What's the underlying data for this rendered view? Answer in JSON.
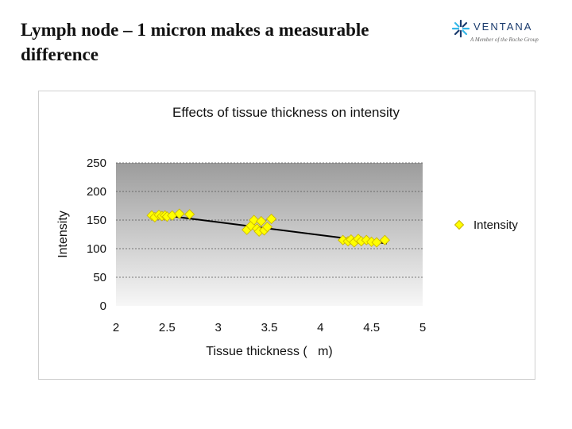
{
  "slide": {
    "title": "Lymph node – 1 micron makes a measurable difference"
  },
  "logo": {
    "name": "VENTANA",
    "tagline": "A Member of the Roche Group"
  },
  "colors": {
    "marker": "#ffff00",
    "marker_stroke": "#c9b400",
    "trendline": "#000000",
    "plot_top": "#9c9c9c",
    "plot_bottom": "#f7f7f7",
    "gridline": "#555555",
    "logo_blue": "#1b3c6e",
    "logo_cyan": "#35b6e8"
  },
  "chart_data": {
    "type": "scatter",
    "title": "Effects of tissue thickness on intensity",
    "xlabel": "Tissue thickness (   m)",
    "ylabel": "Intensity",
    "xlim": [
      2,
      5
    ],
    "ylim": [
      0,
      250
    ],
    "xticks": [
      "2",
      "2.5",
      "3",
      "3.5",
      "4",
      "4.5",
      "5"
    ],
    "yticks": [
      "0",
      "50",
      "100",
      "150",
      "200",
      "250"
    ],
    "grid": "horizontal dashed",
    "legend_position": "right",
    "series": [
      {
        "name": "Intensity",
        "marker": "diamond",
        "points": [
          [
            2.35,
            158
          ],
          [
            2.38,
            155
          ],
          [
            2.42,
            159
          ],
          [
            2.45,
            157
          ],
          [
            2.48,
            158
          ],
          [
            2.5,
            156
          ],
          [
            2.55,
            158
          ],
          [
            2.62,
            161
          ],
          [
            2.72,
            160
          ],
          [
            3.28,
            133
          ],
          [
            3.32,
            140
          ],
          [
            3.35,
            150
          ],
          [
            3.38,
            135
          ],
          [
            3.4,
            130
          ],
          [
            3.42,
            148
          ],
          [
            3.45,
            132
          ],
          [
            3.48,
            138
          ],
          [
            3.52,
            152
          ],
          [
            4.22,
            115
          ],
          [
            4.27,
            113
          ],
          [
            4.3,
            116
          ],
          [
            4.33,
            111
          ],
          [
            4.37,
            117
          ],
          [
            4.4,
            113
          ],
          [
            4.45,
            115
          ],
          [
            4.5,
            112
          ],
          [
            4.55,
            111
          ],
          [
            4.63,
            115
          ]
        ]
      }
    ],
    "trendline": {
      "x": [
        2.35,
        4.65
      ],
      "y": [
        161,
        109
      ]
    }
  }
}
